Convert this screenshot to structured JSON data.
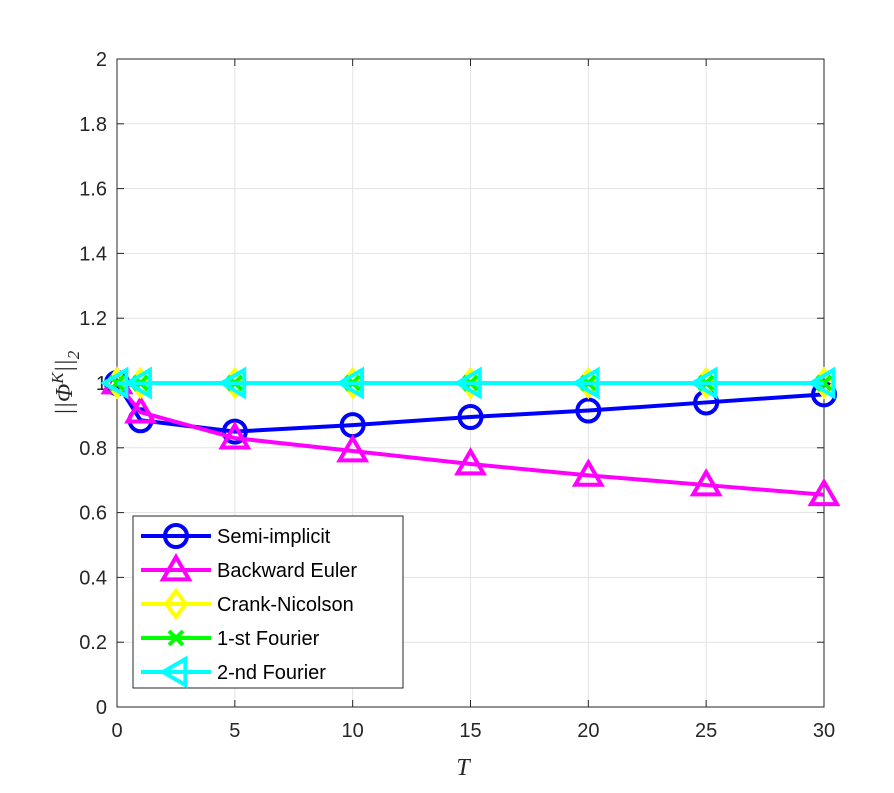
{
  "chart_data": {
    "type": "line",
    "xlabel": "T",
    "ylabel": "||Φ^K||_2",
    "ylabel_main": "||Φ",
    "ylabel_sup": "K",
    "ylabel_end": "||",
    "ylabel_sub": "2",
    "xlim": [
      0,
      30
    ],
    "ylim": [
      0,
      2
    ],
    "xticks": [
      "0",
      "5",
      "10",
      "15",
      "20",
      "25",
      "30"
    ],
    "yticks": [
      "0",
      "0.2",
      "0.4",
      "0.6",
      "0.8",
      "1",
      "1.2",
      "1.4",
      "1.6",
      "1.8",
      "2"
    ],
    "grid": true,
    "legend_position": "bottom-left",
    "series": [
      {
        "name": "Semi-implicit",
        "color": "#0000ff",
        "marker": "circle",
        "x": [
          0,
          1,
          5,
          10,
          15,
          20,
          25,
          30
        ],
        "y": [
          1.0,
          0.885,
          0.85,
          0.87,
          0.895,
          0.915,
          0.94,
          0.965
        ]
      },
      {
        "name": "Backward Euler",
        "color": "#ff00ff",
        "marker": "triangle-up",
        "x": [
          0,
          1,
          5,
          10,
          15,
          20,
          25,
          30
        ],
        "y": [
          1.0,
          0.91,
          0.83,
          0.79,
          0.75,
          0.715,
          0.685,
          0.655
        ]
      },
      {
        "name": "Crank-Nicolson",
        "color": "#ffff00",
        "marker": "diamond",
        "x": [
          0,
          1,
          5,
          10,
          15,
          20,
          25,
          30
        ],
        "y": [
          1.0,
          1.0,
          1.0,
          1.0,
          1.0,
          1.0,
          1.0,
          1.0
        ]
      },
      {
        "name": "1-st Fourier",
        "color": "#00ff00",
        "marker": "x",
        "x": [
          0,
          1,
          5,
          10,
          15,
          20,
          25,
          30
        ],
        "y": [
          1.0,
          1.0,
          1.0,
          1.0,
          1.0,
          1.0,
          1.0,
          1.0
        ]
      },
      {
        "name": "2-nd Fourier",
        "color": "#00ffff",
        "marker": "triangle-left",
        "x": [
          0,
          1,
          5,
          10,
          15,
          20,
          25,
          30
        ],
        "y": [
          1.0,
          1.0,
          1.0,
          1.0,
          1.0,
          1.0,
          1.0,
          1.0
        ]
      }
    ]
  }
}
